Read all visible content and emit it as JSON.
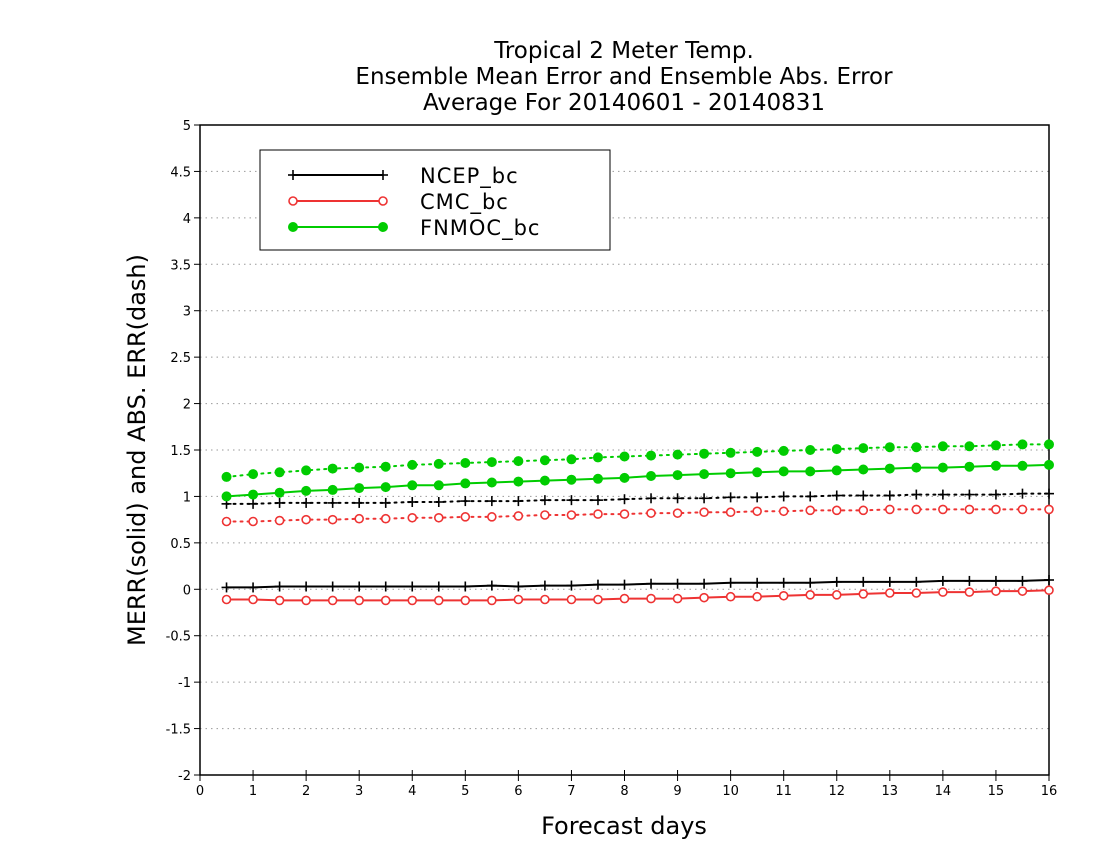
{
  "chart_data": {
    "type": "line",
    "title": [
      "Tropical 2 Meter Temp.",
      "Ensemble Mean Error and Ensemble Abs. Error",
      "Average For 20140601 - 20140831"
    ],
    "xlabel": "Forecast days",
    "ylabel": "MERR(solid) and ABS. ERR(dash)",
    "xlim": [
      0,
      16
    ],
    "ylim": [
      -2,
      5
    ],
    "xticks": [
      0,
      1,
      2,
      3,
      4,
      5,
      6,
      7,
      8,
      9,
      10,
      11,
      12,
      13,
      14,
      15,
      16
    ],
    "xtick_labels": [
      "0",
      "1",
      "2",
      "3",
      "4",
      "5",
      "6",
      "7",
      "8",
      "9",
      "10",
      "11",
      "12",
      "13",
      "14",
      "15",
      "16"
    ],
    "yticks": [
      -2,
      -1.5,
      -1,
      -0.5,
      0,
      0.5,
      1,
      1.5,
      2,
      2.5,
      3,
      3.5,
      4,
      4.5,
      5
    ],
    "ytick_labels": [
      "-2",
      "-1.5",
      "-1",
      "-0.5",
      "0",
      "0.5",
      "1",
      "1.5",
      "2",
      "2.5",
      "3",
      "3.5",
      "4",
      "4.5",
      "5"
    ],
    "grid": "horizontal dotted",
    "legend_position": "top-left",
    "x": [
      0.5,
      1,
      1.5,
      2,
      2.5,
      3,
      3.5,
      4,
      4.5,
      5,
      5.5,
      6,
      6.5,
      7,
      7.5,
      8,
      8.5,
      9,
      9.5,
      10,
      10.5,
      11,
      11.5,
      12,
      12.5,
      13,
      13.5,
      14,
      14.5,
      15,
      15.5,
      16
    ],
    "series": [
      {
        "name": "NCEP_bc",
        "color": "#000000",
        "marker": "plus",
        "merr": [
          0.02,
          0.02,
          0.03,
          0.03,
          0.03,
          0.03,
          0.03,
          0.03,
          0.03,
          0.03,
          0.04,
          0.03,
          0.04,
          0.04,
          0.05,
          0.05,
          0.06,
          0.06,
          0.06,
          0.07,
          0.07,
          0.07,
          0.07,
          0.08,
          0.08,
          0.08,
          0.08,
          0.09,
          0.09,
          0.09,
          0.09,
          0.1
        ],
        "abs_err": [
          0.92,
          0.92,
          0.93,
          0.93,
          0.93,
          0.93,
          0.93,
          0.94,
          0.94,
          0.95,
          0.95,
          0.95,
          0.96,
          0.96,
          0.96,
          0.97,
          0.98,
          0.98,
          0.98,
          0.99,
          0.99,
          1.0,
          1.0,
          1.01,
          1.01,
          1.01,
          1.02,
          1.02,
          1.02,
          1.02,
          1.03,
          1.03
        ]
      },
      {
        "name": "CMC_bc",
        "color": "#ee3333",
        "marker": "open-circle",
        "merr": [
          -0.11,
          -0.11,
          -0.12,
          -0.12,
          -0.12,
          -0.12,
          -0.12,
          -0.12,
          -0.12,
          -0.12,
          -0.12,
          -0.11,
          -0.11,
          -0.11,
          -0.11,
          -0.1,
          -0.1,
          -0.1,
          -0.09,
          -0.08,
          -0.08,
          -0.07,
          -0.06,
          -0.06,
          -0.05,
          -0.04,
          -0.04,
          -0.03,
          -0.03,
          -0.02,
          -0.02,
          -0.01
        ],
        "abs_err": [
          0.73,
          0.73,
          0.74,
          0.75,
          0.75,
          0.76,
          0.76,
          0.77,
          0.77,
          0.78,
          0.78,
          0.79,
          0.8,
          0.8,
          0.81,
          0.81,
          0.82,
          0.82,
          0.83,
          0.83,
          0.84,
          0.84,
          0.85,
          0.85,
          0.85,
          0.86,
          0.86,
          0.86,
          0.86,
          0.86,
          0.86,
          0.86
        ]
      },
      {
        "name": "FNMOC_bc",
        "color": "#00cc00",
        "marker": "filled-circle",
        "merr": [
          1.0,
          1.02,
          1.04,
          1.06,
          1.07,
          1.09,
          1.1,
          1.12,
          1.12,
          1.14,
          1.15,
          1.16,
          1.17,
          1.18,
          1.19,
          1.2,
          1.22,
          1.23,
          1.24,
          1.25,
          1.26,
          1.27,
          1.27,
          1.28,
          1.29,
          1.3,
          1.31,
          1.31,
          1.32,
          1.33,
          1.33,
          1.34
        ],
        "abs_err": [
          1.21,
          1.24,
          1.26,
          1.28,
          1.3,
          1.31,
          1.32,
          1.34,
          1.35,
          1.36,
          1.37,
          1.38,
          1.39,
          1.4,
          1.42,
          1.43,
          1.44,
          1.45,
          1.46,
          1.47,
          1.48,
          1.49,
          1.5,
          1.51,
          1.52,
          1.53,
          1.53,
          1.54,
          1.54,
          1.55,
          1.56,
          1.56
        ]
      }
    ]
  }
}
